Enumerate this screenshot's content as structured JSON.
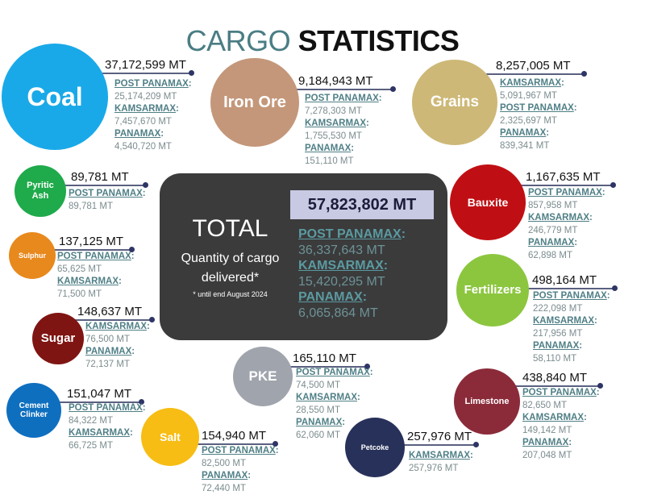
{
  "title": {
    "part1": "CARGO",
    "part2": "STATISTICS"
  },
  "summary": {
    "heading": "TOTAL",
    "subtitle_line1": "Quantity of cargo",
    "subtitle_line2": "delivered*",
    "footnote": "* until end August 2024",
    "total": "57,823,802 MT",
    "breakdown": [
      {
        "label": "POST PANAMAX",
        "value": "36,337,643 MT"
      },
      {
        "label": "KAMSARMAX",
        "value": "15,420,295 MT"
      },
      {
        "label": "PANAMAX",
        "value": "6,065,864 MT"
      }
    ]
  },
  "cargo": [
    {
      "name": "Coal",
      "color": "#1aa9e8",
      "total": "37,172,599 MT",
      "breakdown": [
        {
          "label": "POST PANAMAX",
          "value": "25,174,209 MT"
        },
        {
          "label": "KAMSARMAX",
          "value": "7,457,670 MT"
        },
        {
          "label": "PANAMAX",
          "value": "4,540,720 MT"
        }
      ]
    },
    {
      "name": "Iron Ore",
      "color": "#c4977a",
      "total": "9,184,943 MT",
      "breakdown": [
        {
          "label": "POST PANAMAX",
          "value": "7,278,303 MT"
        },
        {
          "label": "KAMSARMAX",
          "value": "1,755,530 MT"
        },
        {
          "label": "PANAMAX",
          "value": "151,110 MT"
        }
      ]
    },
    {
      "name": "Grains",
      "color": "#cdb877",
      "total": "8,257,005 MT",
      "breakdown": [
        {
          "label": "KAMSARMAX",
          "value": "5,091,967 MT"
        },
        {
          "label": "POST PANAMAX",
          "value": "2,325,697 MT"
        },
        {
          "label": "PANAMAX",
          "value": "839,341 MT"
        }
      ]
    },
    {
      "name": "Pyritic Ash",
      "color": "#1faa4b",
      "total": "89,781 MT",
      "breakdown": [
        {
          "label": "POST PANAMAX",
          "value": "89,781 MT"
        }
      ]
    },
    {
      "name": "Sulphur",
      "color": "#e8891e",
      "total": "137,125 MT",
      "breakdown": [
        {
          "label": "POST PANAMAX",
          "value": "65,625 MT"
        },
        {
          "label": "KAMSARMAX",
          "value": "71,500 MT"
        }
      ]
    },
    {
      "name": "Sugar",
      "color": "#7f1512",
      "total": "148,637 MT",
      "breakdown": [
        {
          "label": "KAMSARMAX",
          "value": "76,500 MT"
        },
        {
          "label": "PANAMAX",
          "value": "72,137 MT"
        }
      ]
    },
    {
      "name": "Cement Clinker",
      "color": "#0f6fbf",
      "total": "151,047 MT",
      "breakdown": [
        {
          "label": "POST PANAMAX",
          "value": "84,322 MT"
        },
        {
          "label": "KAMSARMAX",
          "value": "66,725 MT"
        }
      ]
    },
    {
      "name": "Salt",
      "color": "#f7bd14",
      "total": "154,940 MT",
      "breakdown": [
        {
          "label": "POST PANAMAX",
          "value": "82,500 MT"
        },
        {
          "label": "PANAMAX",
          "value": "72,440 MT"
        }
      ]
    },
    {
      "name": "PKE",
      "color": "#a0a4ad",
      "total": "165,110 MT",
      "breakdown": [
        {
          "label": "POST PANAMAX",
          "value": "74,500 MT"
        },
        {
          "label": "KAMSARMAX",
          "value": "28,550 MT"
        },
        {
          "label": "PANAMAX",
          "value": "62,060 MT"
        }
      ]
    },
    {
      "name": "Petcoke",
      "color": "#28315a",
      "total": "257,976 MT",
      "breakdown": [
        {
          "label": "KAMSARMAX",
          "value": "257,976 MT"
        }
      ]
    },
    {
      "name": "Limestone",
      "color": "#8b2b3a",
      "total": "438,840 MT",
      "breakdown": [
        {
          "label": "POST PANAMAX",
          "value": "82,650 MT"
        },
        {
          "label": "KAMSARMAX",
          "value": "149,142 MT"
        },
        {
          "label": "PANAMAX",
          "value": "207,048 MT"
        }
      ]
    },
    {
      "name": "Bauxite",
      "color": "#c00f14",
      "total": "1,167,635 MT",
      "breakdown": [
        {
          "label": "POST PANAMAX",
          "value": "857,958 MT"
        },
        {
          "label": "KAMSARMAX",
          "value": "246,779 MT"
        },
        {
          "label": "PANAMAX",
          "value": "62,898 MT"
        }
      ]
    },
    {
      "name": "Fertilizers",
      "color": "#8cc63f",
      "total": "498,164 MT",
      "breakdown": [
        {
          "label": "POST PANAMAX",
          "value": "222,098 MT"
        },
        {
          "label": "KAMSARMAX",
          "value": "217,956 MT"
        },
        {
          "label": "PANAMAX",
          "value": "58,110 MT"
        }
      ]
    }
  ]
}
